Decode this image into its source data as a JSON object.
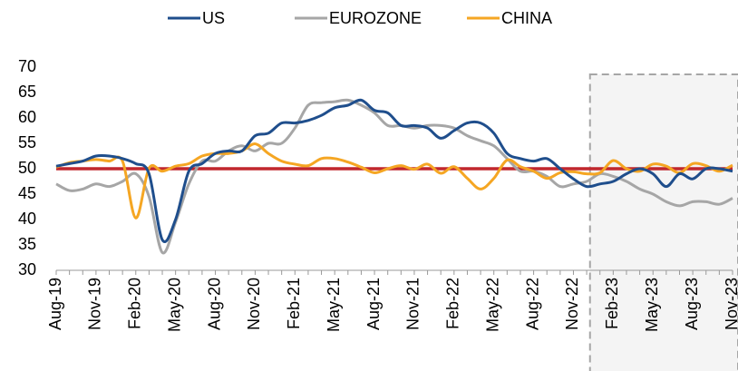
{
  "chart_data": {
    "type": "line",
    "categories": [
      "Aug-19",
      null,
      null,
      "Nov-19",
      null,
      null,
      "Feb-20",
      null,
      null,
      "May-20",
      null,
      null,
      "Aug-20",
      null,
      null,
      "Nov-20",
      null,
      null,
      "Feb-21",
      null,
      null,
      "May-21",
      null,
      null,
      "Aug-21",
      null,
      null,
      "Nov-21",
      null,
      null,
      "Feb-22",
      null,
      null,
      "May-22",
      null,
      null,
      "Aug-22",
      null,
      null,
      "Nov-22",
      null,
      null,
      "Feb-23",
      null,
      null,
      "May-23",
      null,
      null,
      "Aug-23",
      null,
      null,
      "Nov-23"
    ],
    "series": [
      {
        "name": "US",
        "color": "#1f4e8c",
        "values": [
          50.5,
          51,
          51.5,
          52.5,
          52.5,
          52,
          51,
          49,
          36,
          40,
          49.5,
          51,
          53,
          53.5,
          53.5,
          56.5,
          57,
          59,
          59,
          59.5,
          60.5,
          62,
          62.5,
          63.5,
          61.5,
          61,
          58.5,
          58.5,
          58,
          56,
          57.5,
          59,
          59,
          57,
          53,
          52,
          51.5,
          52,
          50,
          48,
          46.5,
          47,
          47.5,
          49,
          50,
          49,
          46.5,
          49,
          48,
          50,
          50,
          49.5
        ]
      },
      {
        "name": "EUROZONE",
        "color": "#a6a6a6",
        "values": [
          47,
          45.7,
          46,
          47,
          46.5,
          47.5,
          49,
          44.5,
          33.5,
          39.5,
          47,
          51.5,
          51.5,
          53.5,
          54.5,
          53.5,
          55,
          55,
          58,
          62.5,
          63,
          63.2,
          63.5,
          62.5,
          61,
          58.5,
          58.5,
          58,
          58.5,
          58.5,
          58,
          56.5,
          55.5,
          54.5,
          52,
          49.5,
          49.5,
          48.5,
          46.5,
          47,
          47.5,
          49,
          48.5,
          47.5,
          46,
          45,
          43.5,
          42.7,
          43.5,
          43.5,
          43,
          44.2
        ]
      },
      {
        "name": "CHINA",
        "color": "#f5a623",
        "values": [
          50.3,
          51.2,
          51.5,
          51.8,
          51.5,
          51.5,
          40.3,
          50.1,
          49.5,
          50.5,
          51,
          52.5,
          53,
          53,
          53.5,
          54.9,
          53,
          51.5,
          50.9,
          50.6,
          52,
          52,
          51.3,
          50.3,
          49.2,
          50,
          50.6,
          49.9,
          50.9,
          49.1,
          50.4,
          48.1,
          46,
          48.1,
          51.7,
          50.4,
          49.5,
          48.1,
          49.2,
          49.4,
          49,
          49.2,
          51.6,
          50,
          49.5,
          50.9,
          50.5,
          49.2,
          51,
          50.6,
          49.5,
          50.7
        ]
      }
    ],
    "reference_line": {
      "value": 50,
      "color": "#c0272d"
    },
    "ylim": [
      30,
      70
    ],
    "yticks": [
      30,
      35,
      40,
      45,
      50,
      55,
      60,
      65,
      70
    ],
    "grid": false,
    "legend": "top"
  }
}
